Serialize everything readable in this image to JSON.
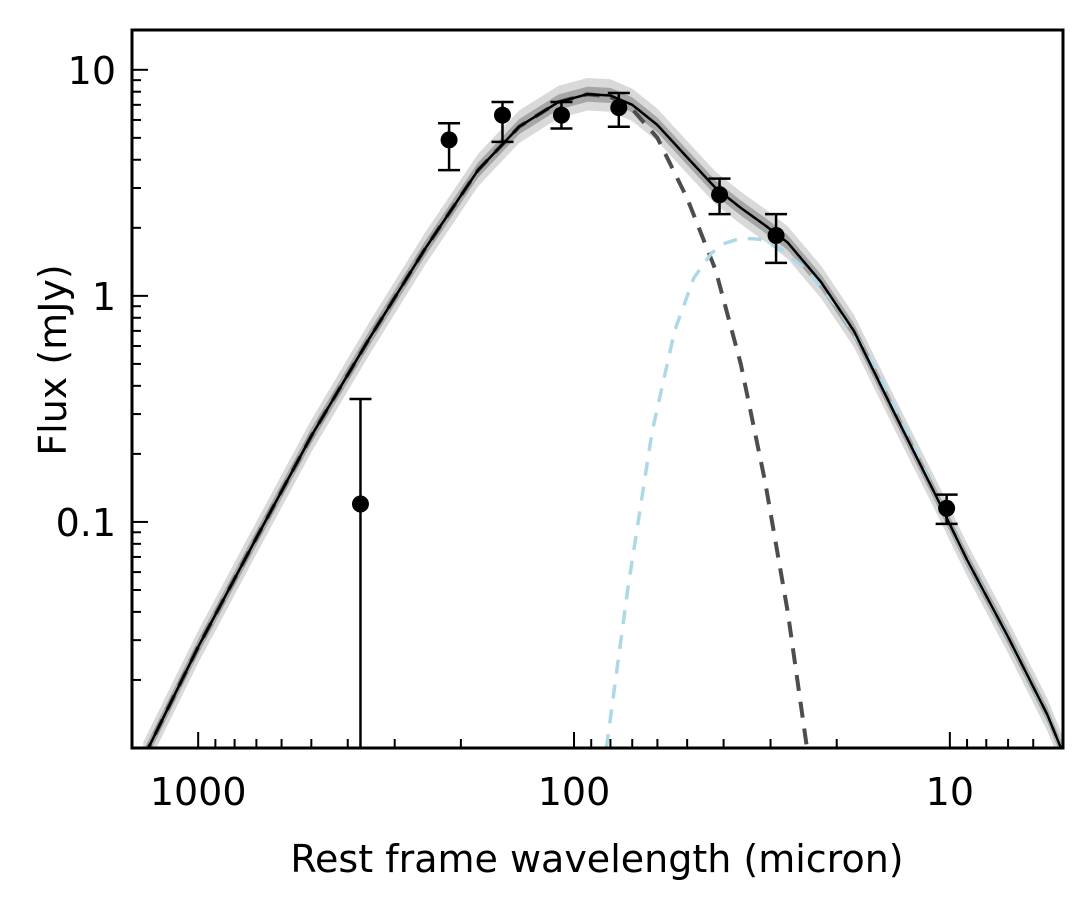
{
  "chart_data": {
    "type": "scatter",
    "title": "",
    "xlabel": "Rest frame wavelength (micron)",
    "ylabel": "Flux (mJy)",
    "x_scale": "log",
    "y_scale": "log",
    "x_reversed": true,
    "xlim": [
      1500,
      5
    ],
    "ylim": [
      0.01,
      15
    ],
    "x_ticks": [
      {
        "value": 1000,
        "label": "1000"
      },
      {
        "value": 100,
        "label": "100"
      },
      {
        "value": 10,
        "label": "10"
      }
    ],
    "y_ticks": [
      {
        "value": 10,
        "label": "10"
      },
      {
        "value": 1,
        "label": "1"
      },
      {
        "value": 0.1,
        "label": "0.1"
      }
    ],
    "grid": false,
    "colors": {
      "data": "#000000",
      "total_model": "#000000",
      "cold_component": "#4d4d4d",
      "warm_component": "#add8e6",
      "band_outer": "#d9d9d9",
      "band_inner": "#a6a6a6"
    },
    "observations": [
      {
        "x": 370,
        "y": 0.12,
        "yerr_low": 0.12,
        "yerr_high": 0.23
      },
      {
        "x": 215,
        "y": 4.9,
        "yerr_low": 1.3,
        "yerr_high": 0.9
      },
      {
        "x": 155,
        "y": 6.3,
        "yerr_low": 1.5,
        "yerr_high": 0.9
      },
      {
        "x": 108,
        "y": 6.3,
        "yerr_low": 0.8,
        "yerr_high": 0.9
      },
      {
        "x": 76,
        "y": 6.8,
        "yerr_low": 1.2,
        "yerr_high": 1.1
      },
      {
        "x": 41,
        "y": 2.8,
        "yerr_low": 0.5,
        "yerr_high": 0.5
      },
      {
        "x": 29,
        "y": 1.85,
        "yerr_low": 0.45,
        "yerr_high": 0.45
      },
      {
        "x": 10.2,
        "y": 0.115,
        "yerr_low": 0.017,
        "yerr_high": 0.017
      }
    ],
    "total_model": {
      "x": [
        1400,
        1000,
        700,
        500,
        350,
        250,
        180,
        140,
        110,
        92,
        80,
        70,
        60,
        50,
        42,
        36,
        31,
        27,
        22,
        18,
        14,
        11,
        9,
        7,
        5.5,
        5
      ],
      "y": [
        0.009,
        0.028,
        0.085,
        0.24,
        0.65,
        1.6,
        3.6,
        5.6,
        7.2,
        7.8,
        7.7,
        7.0,
        5.7,
        4.1,
        3.0,
        2.45,
        2.05,
        1.72,
        1.15,
        0.7,
        0.3,
        0.135,
        0.068,
        0.031,
        0.014,
        0.0095
      ]
    },
    "cold_component": {
      "x": [
        1400,
        1000,
        700,
        500,
        350,
        250,
        180,
        140,
        110,
        92,
        80,
        70,
        60,
        50,
        42,
        36,
        31,
        27,
        24
      ],
      "y": [
        0.009,
        0.028,
        0.085,
        0.24,
        0.65,
        1.6,
        3.6,
        5.6,
        7.2,
        7.8,
        7.6,
        6.7,
        5.0,
        2.7,
        1.3,
        0.5,
        0.15,
        0.04,
        0.01
      ]
    },
    "warm_component": {
      "x": [
        82,
        72,
        62,
        54,
        48,
        43,
        40,
        36,
        32,
        28,
        24,
        20,
        16,
        13,
        11,
        9,
        7,
        5.5,
        5
      ],
      "y": [
        0.01,
        0.05,
        0.25,
        0.7,
        1.2,
        1.55,
        1.7,
        1.8,
        1.78,
        1.6,
        1.3,
        0.9,
        0.5,
        0.25,
        0.135,
        0.068,
        0.031,
        0.014,
        0.0095
      ]
    }
  }
}
